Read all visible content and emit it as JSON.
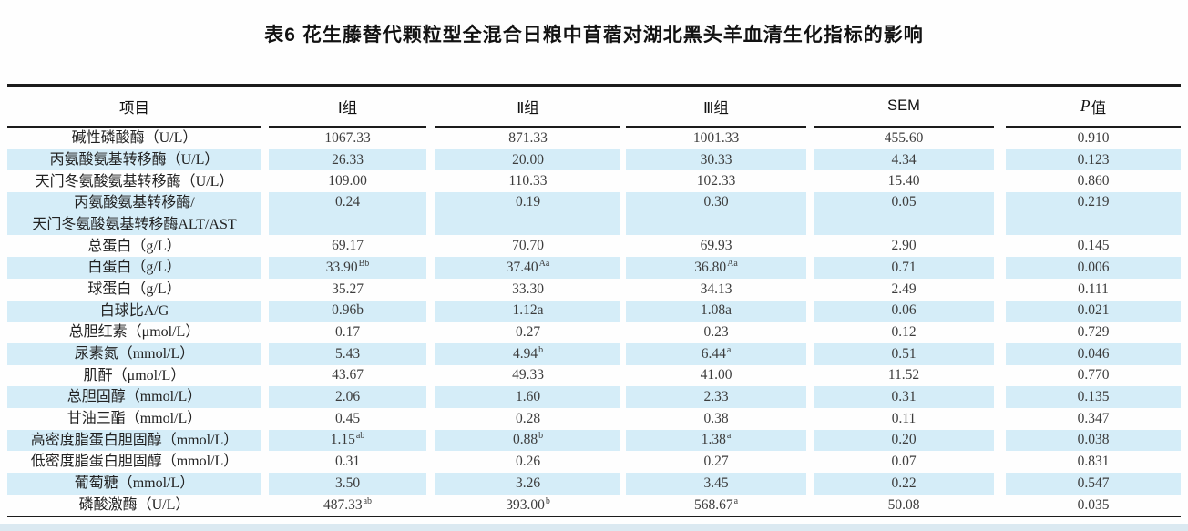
{
  "title": "表6 花生藤替代颗粒型全混合日粮中苜蓿对湖北黑头羊血清生化指标的影响",
  "colors": {
    "row_shade": "#d5edf8",
    "rule": "#1c1c1c",
    "text": "#222222",
    "bottom_band": "#dbe9f1"
  },
  "table": {
    "columns": [
      {
        "key": "item",
        "label": "项目"
      },
      {
        "key": "group1",
        "label": "Ⅰ组"
      },
      {
        "key": "group2",
        "label": "Ⅱ组"
      },
      {
        "key": "group3",
        "label": "Ⅲ组"
      },
      {
        "key": "sem",
        "label": "SEM"
      },
      {
        "key": "pvalue",
        "label": "P值",
        "italic_part": "P",
        "rest_part": "值"
      }
    ],
    "rows": [
      {
        "item": [
          "碱性磷酸酶（U/L）"
        ],
        "shaded": false,
        "tall": false,
        "values": [
          {
            "v": "1067.33"
          },
          {
            "v": "871.33"
          },
          {
            "v": "1001.33"
          },
          {
            "v": "455.60"
          },
          {
            "v": "0.910"
          }
        ]
      },
      {
        "item": [
          "丙氨酸氨基转移酶（U/L）"
        ],
        "shaded": true,
        "tall": false,
        "values": [
          {
            "v": "26.33"
          },
          {
            "v": "20.00"
          },
          {
            "v": "30.33"
          },
          {
            "v": "4.34"
          },
          {
            "v": "0.123"
          }
        ]
      },
      {
        "item": [
          "天门冬氨酸氨基转移酶（U/L）"
        ],
        "shaded": false,
        "tall": false,
        "values": [
          {
            "v": "109.00"
          },
          {
            "v": "110.33"
          },
          {
            "v": "102.33"
          },
          {
            "v": "15.40"
          },
          {
            "v": "0.860"
          }
        ]
      },
      {
        "item": [
          "丙氨酸氨基转移酶/",
          "天门冬氨酸氨基转移酶ALT/AST"
        ],
        "shaded": true,
        "tall": true,
        "values": [
          {
            "v": "0.24"
          },
          {
            "v": "0.19"
          },
          {
            "v": "0.30"
          },
          {
            "v": "0.05"
          },
          {
            "v": "0.219"
          }
        ]
      },
      {
        "item": [
          "总蛋白（g/L）"
        ],
        "shaded": false,
        "tall": false,
        "values": [
          {
            "v": "69.17"
          },
          {
            "v": "70.70"
          },
          {
            "v": "69.93"
          },
          {
            "v": "2.90"
          },
          {
            "v": "0.145"
          }
        ]
      },
      {
        "item": [
          "白蛋白（g/L）"
        ],
        "shaded": true,
        "tall": false,
        "values": [
          {
            "v": "33.90",
            "sup": "Bb"
          },
          {
            "v": "37.40",
            "sup": "Aa"
          },
          {
            "v": "36.80",
            "sup": "Aa"
          },
          {
            "v": "0.71"
          },
          {
            "v": "0.006"
          }
        ]
      },
      {
        "item": [
          "球蛋白（g/L）"
        ],
        "shaded": false,
        "tall": false,
        "values": [
          {
            "v": "35.27"
          },
          {
            "v": "33.30"
          },
          {
            "v": "34.13"
          },
          {
            "v": "2.49"
          },
          {
            "v": "0.111"
          }
        ]
      },
      {
        "item": [
          "白球比A/G"
        ],
        "shaded": true,
        "tall": false,
        "values": [
          {
            "v": "0.96b"
          },
          {
            "v": "1.12a"
          },
          {
            "v": "1.08a"
          },
          {
            "v": "0.06"
          },
          {
            "v": "0.021"
          }
        ]
      },
      {
        "item": [
          "总胆红素（μmol/L）"
        ],
        "shaded": false,
        "tall": false,
        "values": [
          {
            "v": "0.17"
          },
          {
            "v": "0.27"
          },
          {
            "v": "0.23"
          },
          {
            "v": "0.12"
          },
          {
            "v": "0.729"
          }
        ]
      },
      {
        "item": [
          "尿素氮（mmol/L）"
        ],
        "shaded": true,
        "tall": false,
        "values": [
          {
            "v": "5.43"
          },
          {
            "v": "4.94",
            "sup": "b"
          },
          {
            "v": "6.44",
            "sup": "a"
          },
          {
            "v": "0.51"
          },
          {
            "v": "0.046"
          }
        ]
      },
      {
        "item": [
          "肌酐（μmol/L）"
        ],
        "shaded": false,
        "tall": false,
        "values": [
          {
            "v": "43.67"
          },
          {
            "v": "49.33"
          },
          {
            "v": "41.00"
          },
          {
            "v": "11.52"
          },
          {
            "v": "0.770"
          }
        ]
      },
      {
        "item": [
          "总胆固醇（mmol/L）"
        ],
        "shaded": true,
        "tall": false,
        "values": [
          {
            "v": "2.06"
          },
          {
            "v": "1.60"
          },
          {
            "v": "2.33"
          },
          {
            "v": "0.31"
          },
          {
            "v": "0.135"
          }
        ]
      },
      {
        "item": [
          "甘油三酯（mmol/L）"
        ],
        "shaded": false,
        "tall": false,
        "values": [
          {
            "v": "0.45"
          },
          {
            "v": "0.28"
          },
          {
            "v": "0.38"
          },
          {
            "v": "0.11"
          },
          {
            "v": "0.347"
          }
        ]
      },
      {
        "item": [
          "高密度脂蛋白胆固醇（mmol/L）"
        ],
        "shaded": true,
        "tall": false,
        "values": [
          {
            "v": "1.15",
            "sup": "ab"
          },
          {
            "v": "0.88",
            "sup": "b"
          },
          {
            "v": "1.38",
            "sup": "a"
          },
          {
            "v": "0.20"
          },
          {
            "v": "0.038"
          }
        ]
      },
      {
        "item": [
          "低密度脂蛋白胆固醇（mmol/L）"
        ],
        "shaded": false,
        "tall": false,
        "values": [
          {
            "v": "0.31"
          },
          {
            "v": "0.26"
          },
          {
            "v": "0.27"
          },
          {
            "v": "0.07"
          },
          {
            "v": "0.831"
          }
        ]
      },
      {
        "item": [
          "葡萄糖（mmol/L）"
        ],
        "shaded": true,
        "tall": false,
        "values": [
          {
            "v": "3.50"
          },
          {
            "v": "3.26"
          },
          {
            "v": "3.45"
          },
          {
            "v": "0.22"
          },
          {
            "v": "0.547"
          }
        ]
      },
      {
        "item": [
          "磷酸激酶（U/L）"
        ],
        "shaded": false,
        "tall": false,
        "values": [
          {
            "v": "487.33",
            "sup": "ab"
          },
          {
            "v": "393.00",
            "sup": "b"
          },
          {
            "v": "568.67",
            "sup": "a"
          },
          {
            "v": "50.08"
          },
          {
            "v": "0.035"
          }
        ]
      }
    ]
  }
}
